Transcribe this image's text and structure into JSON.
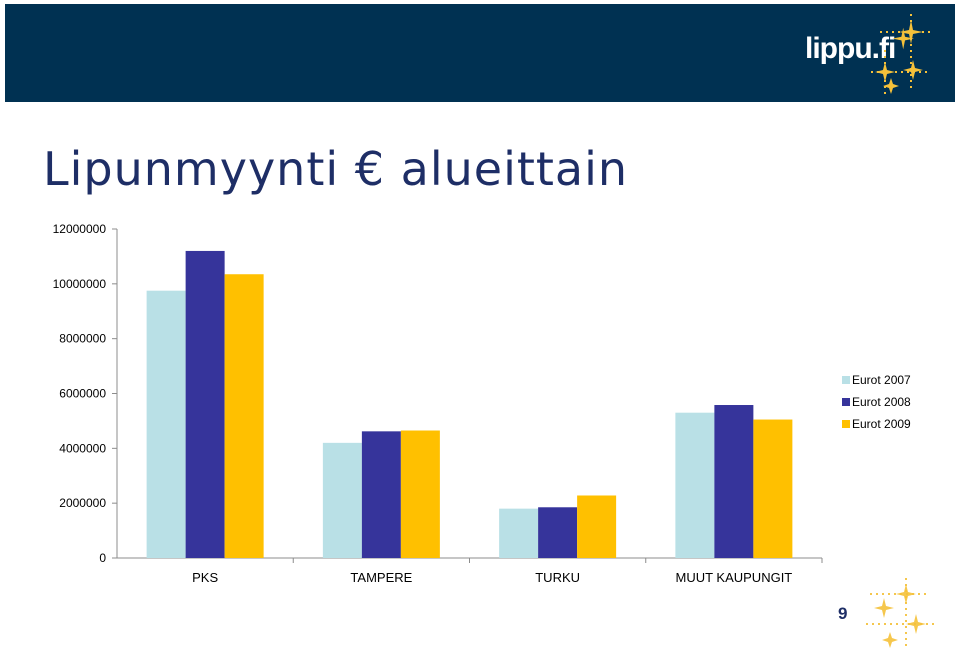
{
  "header": {
    "logo_text": "lippu.fi",
    "logo_icon": "star-cluster-icon"
  },
  "slide": {
    "title": "Lipunmyynti € alueittain",
    "page_number": "9"
  },
  "colors": {
    "header_bg": "#003152",
    "star": "#f5c13a",
    "title": "#1e2e66"
  },
  "chart_data": {
    "type": "bar",
    "categories": [
      "PKS",
      "TAMPERE",
      "TURKU",
      "MUUT KAUPUNGIT"
    ],
    "series": [
      {
        "name": "Eurot 2007",
        "color": "#b9e0e6",
        "values": [
          9750000,
          4200000,
          1800000,
          5300000
        ]
      },
      {
        "name": "Eurot 2008",
        "color": "#36349b",
        "values": [
          11200000,
          4620000,
          1850000,
          5580000
        ]
      },
      {
        "name": "Eurot 2009",
        "color": "#ffc000",
        "values": [
          10350000,
          4650000,
          2280000,
          5050000
        ]
      }
    ],
    "ylim": [
      0,
      12000000
    ],
    "yticks": [
      "0",
      "2000000",
      "4000000",
      "6000000",
      "8000000",
      "10000000",
      "12000000"
    ],
    "xlabel": "",
    "ylabel": "",
    "grid": false,
    "legend_position": "right"
  }
}
